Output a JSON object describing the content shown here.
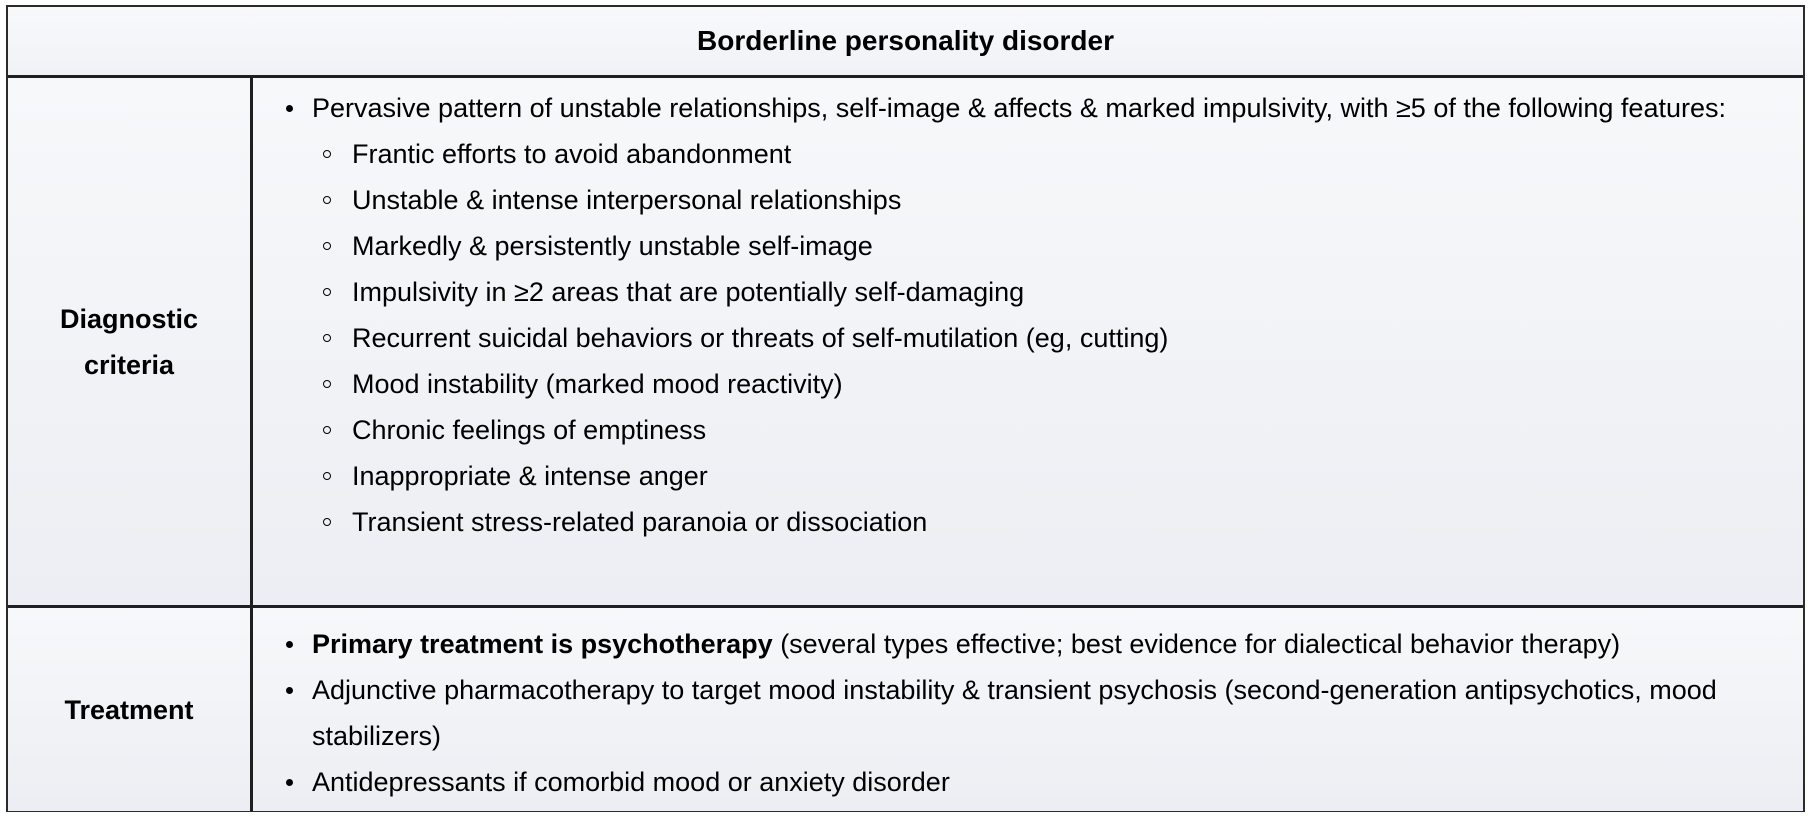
{
  "title": "Borderline personality disorder",
  "diagnostic": {
    "label_line1": "Diagnostic",
    "label_line2": "criteria",
    "intro": "Pervasive pattern of unstable relationships, self-image & affects & marked impulsivity, with ≥5 of the following features:",
    "features": [
      "Frantic efforts to avoid abandonment",
      "Unstable & intense interpersonal relationships",
      "Markedly & persistently unstable self-image",
      "Impulsivity in ≥2 areas that are potentially self-damaging",
      "Recurrent suicidal behaviors or threats of self-mutilation (eg, cutting)",
      "Mood instability (marked mood reactivity)",
      "Chronic feelings of emptiness",
      "Inappropriate & intense anger",
      "Transient stress-related paranoia or dissociation"
    ]
  },
  "treatment": {
    "label": "Treatment",
    "item1_bold": "Primary treatment is psychotherapy",
    "item1_rest": " (several types effective; best evidence for dialectical behavior therapy)",
    "item2": "Adjunctive pharmacotherapy to target mood instability & transient psychosis (second-generation antipsychotics, mood stabilizers)",
    "item3": "Antidepressants if comorbid mood or anxiety disorder"
  }
}
